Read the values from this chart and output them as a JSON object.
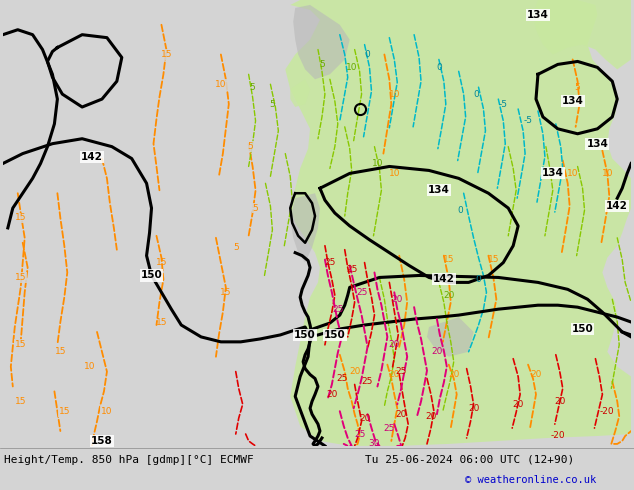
{
  "title_left": "Height/Temp. 850 hPa [gdmp][°C] ECMWF",
  "title_right": "Tu 25-06-2024 06:00 UTC (12+90)",
  "copyright": "© weatheronline.co.uk",
  "bg_color": "#d4d4d4",
  "green_light": "#c8e8a0",
  "green_mid": "#b0d888",
  "figsize": [
    6.34,
    4.9
  ],
  "dpi": 100,
  "bottom_bar_color": "#e0e0e0",
  "title_color": "#000000",
  "copyright_color": "#0000cc",
  "black_lw": 2.2,
  "orange_lw": 1.3,
  "red_lw": 1.2,
  "cyan_lw": 1.1,
  "green_lw": 1.0,
  "magenta_lw": 1.4
}
